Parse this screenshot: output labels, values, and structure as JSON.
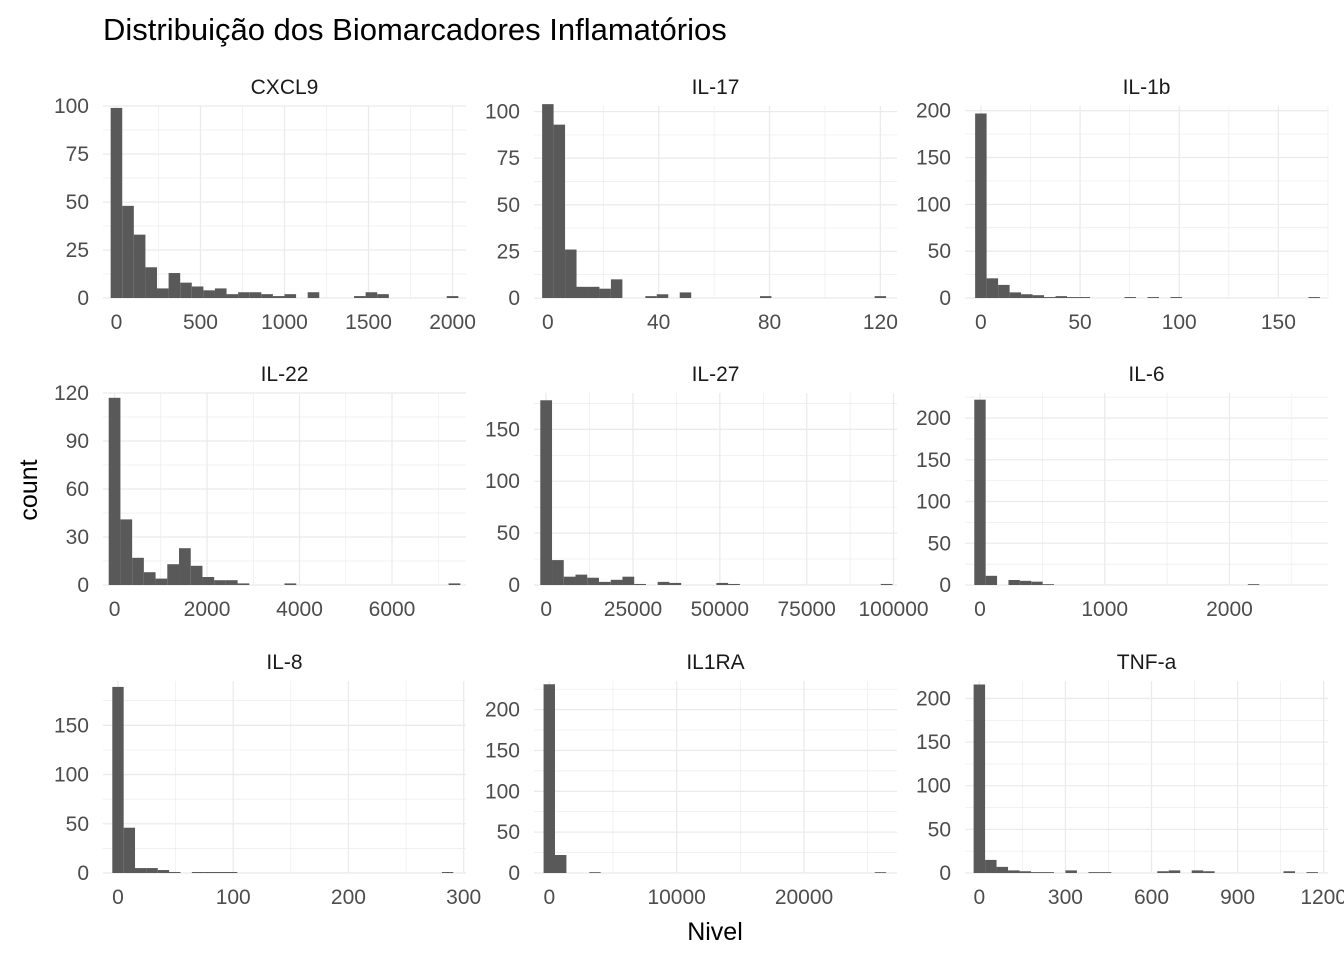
{
  "title": "Distribuição dos Biomarcadores Inflamatórios",
  "xlabel": "Nivel",
  "ylabel": "count",
  "chart_data": {
    "type": "bar",
    "facets": [
      {
        "name": "CXCL9",
        "xlim": [
          -80,
          2080
        ],
        "ylim": [
          0,
          100
        ],
        "xticks": [
          0,
          500,
          1000,
          1500,
          2000
        ],
        "xtick_labels": [
          "0",
          "500",
          "1000",
          "1500",
          "2000"
        ],
        "yticks": [
          0,
          25,
          50,
          75,
          100
        ],
        "ytick_labels": [
          "0",
          "25",
          "50",
          "75",
          "100"
        ],
        "x": [
          0,
          68.97,
          137.93,
          206.9,
          275.86,
          344.83,
          413.79,
          482.76,
          551.72,
          620.69,
          689.66,
          758.62,
          827.59,
          896.55,
          965.52,
          1034.48,
          1103.45,
          1172.41,
          1241.38,
          1310.34,
          1379.31,
          1448.28,
          1517.24,
          1586.21,
          1655.17,
          1724.14,
          1793.1,
          1862.07,
          1931.03,
          2000
        ],
        "values": [
          99,
          48,
          33,
          16,
          5,
          13,
          8,
          6,
          4,
          5,
          2,
          3,
          3,
          2,
          1,
          2,
          0,
          3,
          0,
          0,
          0,
          1,
          3,
          2,
          0,
          0,
          0,
          0,
          0,
          1
        ]
      },
      {
        "name": "IL-17",
        "xlim": [
          -5,
          126
        ],
        "ylim": [
          0,
          103
        ],
        "xticks": [
          0,
          40,
          80,
          120
        ],
        "xtick_labels": [
          "0",
          "40",
          "80",
          "120"
        ],
        "yticks": [
          0,
          25,
          50,
          75,
          100
        ],
        "ytick_labels": [
          "0",
          "25",
          "50",
          "75",
          "100"
        ],
        "x": [
          0,
          4.14,
          8.28,
          12.41,
          16.55,
          20.69,
          24.83,
          28.97,
          33.1,
          37.24,
          41.38,
          45.52,
          49.66,
          53.79,
          57.93,
          62.07,
          66.21,
          70.34,
          74.48,
          78.62,
          82.76,
          86.9,
          91.03,
          95.17,
          99.31,
          103.45,
          107.59,
          111.72,
          115.86,
          120
        ],
        "values": [
          104,
          93,
          26,
          6,
          6,
          5,
          10,
          0,
          0,
          1,
          2,
          0,
          3,
          0,
          0,
          0,
          0,
          0,
          0,
          1,
          0,
          0,
          0,
          0,
          0,
          0,
          0,
          0,
          0,
          1
        ]
      },
      {
        "name": "IL-1b",
        "xlim": [
          -8,
          175
        ],
        "ylim": [
          0,
          205
        ],
        "xticks": [
          0,
          50,
          100,
          150
        ],
        "xtick_labels": [
          "0",
          "50",
          "100",
          "150"
        ],
        "yticks": [
          0,
          50,
          100,
          150,
          200
        ],
        "ytick_labels": [
          "0",
          "50",
          "100",
          "150",
          "200"
        ],
        "x": [
          0,
          5.79,
          11.59,
          17.38,
          23.17,
          28.97,
          34.76,
          40.55,
          46.34,
          52.14,
          57.93,
          63.72,
          69.52,
          75.31,
          81.1,
          86.9,
          92.69,
          98.48,
          104.28,
          110.07,
          115.86,
          121.66,
          127.45,
          133.24,
          139.03,
          144.83,
          150.62,
          156.41,
          162.21,
          168
        ],
        "values": [
          197,
          21,
          14,
          6,
          4,
          3,
          1,
          2,
          1,
          1,
          0,
          0,
          0,
          1,
          0,
          1,
          0,
          1,
          0,
          0,
          0,
          0,
          0,
          0,
          0,
          0,
          0,
          0,
          0,
          1
        ]
      },
      {
        "name": "IL-22",
        "xlim": [
          -250,
          7600
        ],
        "ylim": [
          0,
          120
        ],
        "xticks": [
          0,
          2000,
          4000,
          6000
        ],
        "xtick_labels": [
          "0",
          "2000",
          "4000",
          "6000"
        ],
        "yticks": [
          0,
          30,
          60,
          90,
          120
        ],
        "ytick_labels": [
          "0",
          "30",
          "60",
          "90",
          "120"
        ],
        "x": [
          0,
          253.45,
          506.9,
          760.34,
          1013.79,
          1267.24,
          1520.69,
          1774.14,
          2027.59,
          2281.03,
          2534.48,
          2787.93,
          3041.38,
          3294.83,
          3548.28,
          3801.72,
          4055.17,
          4308.62,
          4562.07,
          4815.52,
          5068.97,
          5322.41,
          5575.86,
          5829.31,
          6082.76,
          6336.21,
          6589.66,
          6843.1,
          7096.55,
          7350
        ],
        "values": [
          117,
          41,
          17,
          8,
          4,
          13,
          23,
          12,
          5,
          3,
          3,
          1,
          0,
          0,
          0,
          1,
          0,
          0,
          0,
          0,
          0,
          0,
          0,
          0,
          0,
          0,
          0,
          0,
          0,
          1
        ]
      },
      {
        "name": "IL-27",
        "xlim": [
          -3500,
          101000
        ],
        "ylim": [
          0,
          185
        ],
        "xticks": [
          0,
          25000,
          50000,
          75000,
          100000
        ],
        "xtick_labels": [
          "0",
          "25000",
          "50000",
          "75000",
          "100000"
        ],
        "yticks": [
          0,
          50,
          100,
          150
        ],
        "ytick_labels": [
          "0",
          "50",
          "100",
          "150"
        ],
        "x": [
          0,
          3379.31,
          6758.62,
          10137.93,
          13517.24,
          16896.55,
          20275.86,
          23655.17,
          27034.48,
          30413.79,
          33793.1,
          37172.41,
          40551.72,
          43931.03,
          47310.34,
          50689.66,
          54068.97,
          57448.28,
          60827.59,
          64206.9,
          67586.21,
          70965.52,
          74344.83,
          77724.14,
          81103.45,
          84482.76,
          87862.07,
          91241.38,
          94620.69,
          98000
        ],
        "values": [
          178,
          24,
          8,
          10,
          7,
          3,
          5,
          8,
          1,
          0,
          3,
          2,
          0,
          0,
          0,
          2,
          1,
          0,
          0,
          0,
          0,
          0,
          0,
          0,
          0,
          0,
          0,
          0,
          0,
          1
        ]
      },
      {
        "name": "IL-6",
        "xlim": [
          -120,
          2790
        ],
        "ylim": [
          0,
          230
        ],
        "xticks": [
          0,
          1000,
          2000
        ],
        "xtick_labels": [
          "0",
          "1000",
          "2000"
        ],
        "yticks": [
          0,
          50,
          100,
          150,
          200
        ],
        "ytick_labels": [
          "0",
          "50",
          "100",
          "150",
          "200"
        ],
        "x": [
          0,
          91.38,
          182.76,
          274.14,
          365.52,
          456.9,
          548.28,
          639.66,
          731.03,
          822.41,
          913.79,
          1005.17,
          1096.55,
          1187.93,
          1279.31,
          1370.69,
          1462.07,
          1553.45,
          1644.83,
          1736.21,
          1827.59,
          1918.97,
          2010.34,
          2101.72,
          2193.1,
          2284.48,
          2375.86,
          2467.24,
          2558.62,
          2650
        ],
        "values": [
          222,
          11,
          0,
          6,
          5,
          4,
          1,
          0,
          0,
          0,
          0,
          0,
          0,
          0,
          0,
          0,
          0,
          0,
          0,
          0,
          0,
          0,
          0,
          0,
          1,
          0,
          0,
          0,
          0,
          0
        ]
      },
      {
        "name": "IL-8",
        "xlim": [
          -13,
          302
        ],
        "ylim": [
          0,
          195
        ],
        "xticks": [
          0,
          100,
          200,
          300
        ],
        "xtick_labels": [
          "0",
          "100",
          "200",
          "300"
        ],
        "yticks": [
          0,
          50,
          100,
          150
        ],
        "ytick_labels": [
          "0",
          "50",
          "100",
          "150"
        ],
        "x": [
          0,
          9.86,
          19.72,
          29.59,
          39.45,
          49.31,
          59.17,
          69.03,
          78.9,
          88.76,
          98.62,
          108.48,
          118.34,
          128.21,
          138.07,
          147.93,
          157.79,
          167.66,
          177.52,
          187.38,
          197.24,
          207.1,
          216.97,
          226.83,
          236.69,
          246.55,
          256.41,
          266.28,
          276.14,
          286
        ],
        "values": [
          189,
          46,
          5,
          5,
          3,
          1,
          0,
          1,
          1,
          1,
          1,
          0,
          0,
          0,
          0,
          0,
          0,
          0,
          0,
          0,
          0,
          0,
          0,
          0,
          0,
          0,
          0,
          0,
          0,
          1
        ]
      },
      {
        "name": "IL1RA",
        "xlim": [
          -1200,
          27300
        ],
        "ylim": [
          0,
          235
        ],
        "xticks": [
          0,
          10000,
          20000
        ],
        "xtick_labels": [
          "0",
          "10000",
          "20000"
        ],
        "yticks": [
          0,
          50,
          100,
          150,
          200
        ],
        "ytick_labels": [
          "0",
          "50",
          "100",
          "150",
          "200"
        ],
        "x": [
          0,
          896.55,
          1793.1,
          2689.66,
          3586.21,
          4482.76,
          5379.31,
          6275.86,
          7172.41,
          8068.97,
          8965.52,
          9862.07,
          10758.62,
          11655.17,
          12551.72,
          13448.28,
          14344.83,
          15241.38,
          16137.93,
          17034.48,
          17931.03,
          18827.59,
          19724.14,
          20620.69,
          21517.24,
          22413.79,
          23310.34,
          24206.9,
          25103.45,
          26000
        ],
        "values": [
          231,
          22,
          0,
          0,
          1,
          0,
          0,
          0,
          0,
          0,
          0,
          0,
          0,
          0,
          0,
          0,
          0,
          0,
          0,
          0,
          0,
          0,
          0,
          0,
          0,
          0,
          0,
          0,
          0,
          1
        ]
      },
      {
        "name": "TNF-a",
        "xlim": [
          -50,
          1215
        ],
        "ylim": [
          0,
          220
        ],
        "xticks": [
          0,
          300,
          600,
          900,
          1200
        ],
        "xtick_labels": [
          "0",
          "300",
          "600",
          "900",
          "1200"
        ],
        "yticks": [
          0,
          50,
          100,
          150,
          200
        ],
        "ytick_labels": [
          "0",
          "50",
          "100",
          "150",
          "200"
        ],
        "x": [
          0,
          40,
          80,
          120,
          160,
          200,
          240,
          280,
          320,
          360,
          400,
          440,
          480,
          520,
          560,
          600,
          640,
          680,
          720,
          760,
          800,
          840,
          880,
          920,
          960,
          1000,
          1040,
          1080,
          1120,
          1160
        ],
        "values": [
          216,
          15,
          7,
          3,
          2,
          1,
          1,
          0,
          3,
          0,
          1,
          1,
          0,
          0,
          0,
          0,
          2,
          3,
          0,
          3,
          2,
          0,
          0,
          0,
          0,
          0,
          0,
          2,
          0,
          1
        ]
      }
    ]
  }
}
